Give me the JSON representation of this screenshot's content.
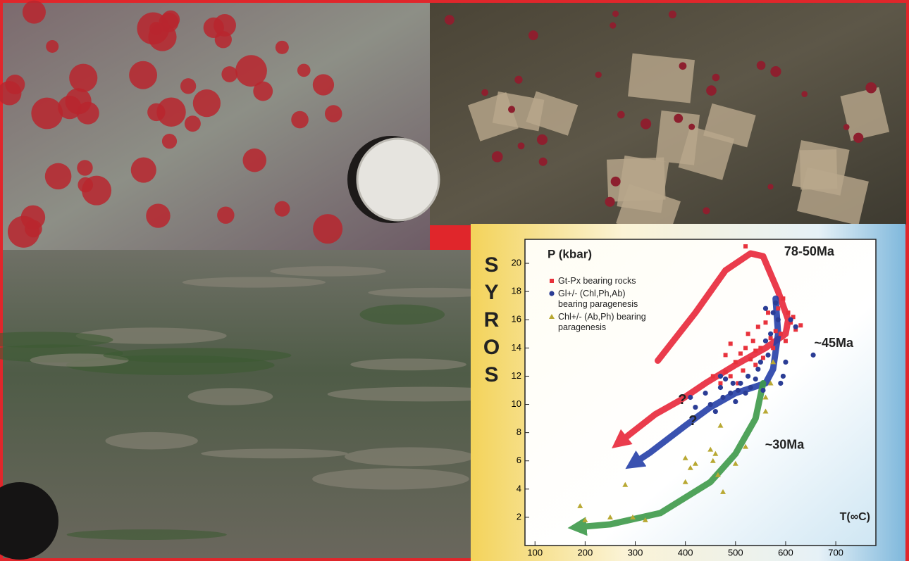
{
  "chart_data": {
    "type": "scatter",
    "side_title": "SYROS",
    "ylabel": "P (kbar)",
    "xlabel": "T(∞C)",
    "xlim": [
      80,
      780
    ],
    "ylim": [
      0,
      21.7
    ],
    "xticks": [
      100,
      200,
      300,
      400,
      500,
      600,
      700
    ],
    "yticks": [
      2,
      4,
      6,
      8,
      10,
      12,
      14,
      16,
      18,
      20
    ],
    "series": [
      {
        "name": "Gt-Px bearing rocks",
        "color": "#e8323c",
        "marker": "square",
        "x": [
          455,
          470,
          480,
          490,
          500,
          510,
          515,
          520,
          525,
          530,
          535,
          540,
          545,
          550,
          555,
          560,
          565,
          570,
          575,
          580,
          585,
          590,
          595,
          600,
          605,
          610,
          615,
          620,
          630,
          520,
          490,
          505,
          480,
          540
        ],
        "y": [
          12.0,
          11.5,
          12.3,
          12.0,
          13.0,
          13.6,
          12.4,
          14.0,
          15.0,
          13.2,
          14.5,
          12.8,
          15.5,
          14.0,
          13.3,
          15.8,
          16.5,
          14.7,
          14.0,
          15.2,
          16.8,
          15.0,
          17.5,
          14.5,
          16.5,
          15.8,
          16.2,
          15.3,
          15.6,
          21.2,
          14.3,
          11.5,
          13.5,
          13.8
        ]
      },
      {
        "name": "Gl+/- (Chl,Ph,Ab) bearing paragenesis",
        "color": "#2b3d95",
        "marker": "circle",
        "x": [
          410,
          420,
          440,
          450,
          460,
          470,
          475,
          480,
          490,
          495,
          500,
          505,
          510,
          520,
          525,
          530,
          540,
          545,
          550,
          555,
          560,
          565,
          570,
          575,
          580,
          585,
          590,
          595,
          600,
          560,
          610,
          620,
          655,
          470
        ],
        "y": [
          10.5,
          9.8,
          10.8,
          10.0,
          9.5,
          11.2,
          10.5,
          11.8,
          10.8,
          11.5,
          10.2,
          11.0,
          11.5,
          10.8,
          12.0,
          11.2,
          11.8,
          12.5,
          13.0,
          11.0,
          14.5,
          13.5,
          15.0,
          16.5,
          17.2,
          16.0,
          11.5,
          12.0,
          13.0,
          16.8,
          16.0,
          15.5,
          13.5,
          12.0
        ]
      },
      {
        "name": "Chl+/- (Ab,Ph) bearing paragenesis",
        "color": "#b8a832",
        "marker": "triangle",
        "x": [
          190,
          200,
          250,
          280,
          295,
          320,
          400,
          400,
          410,
          420,
          450,
          455,
          460,
          465,
          470,
          475,
          500,
          520,
          560,
          570,
          575,
          560
        ],
        "y": [
          2.8,
          1.8,
          2.0,
          4.3,
          2.0,
          1.8,
          4.5,
          6.2,
          5.5,
          5.8,
          6.8,
          6.0,
          6.5,
          5.0,
          8.5,
          3.8,
          5.8,
          7.0,
          9.5,
          11.5,
          13.0,
          10.5
        ]
      }
    ],
    "paths": [
      {
        "label": "78-50Ma",
        "color": "#e8283a",
        "x": [
          345,
          420,
          480,
          530,
          555,
          585,
          605,
          600,
          560,
          500,
          440,
          390,
          340,
          268
        ],
        "y": [
          13.1,
          16.5,
          19.5,
          20.7,
          20.5,
          18,
          16,
          15,
          14,
          12.8,
          11.5,
          10.3,
          9.3,
          7.3
        ],
        "label_x": 647,
        "label_y": 20.8
      },
      {
        "label": "~45Ma",
        "color": "#2540a8",
        "x": [
          580,
          585,
          575,
          560,
          500,
          450,
          400,
          330,
          296
        ],
        "y": [
          17.5,
          15,
          12.5,
          11.5,
          10.8,
          9.8,
          8.5,
          6.6,
          5.8
        ],
        "label_x": 696,
        "label_y": 14.3
      },
      {
        "label": "~30Ma",
        "color": "#3e9a4a",
        "x": [
          555,
          540,
          500,
          450,
          350,
          250,
          184
        ],
        "y": [
          11.5,
          9,
          6.5,
          4.5,
          2.3,
          1.5,
          1.3
        ],
        "label_x": 598,
        "label_y": 7.1
      }
    ],
    "annotations": [
      {
        "text": "?",
        "x": 394,
        "y": 10.3
      },
      {
        "text": "?",
        "x": 415,
        "y": 8.8
      }
    ]
  }
}
